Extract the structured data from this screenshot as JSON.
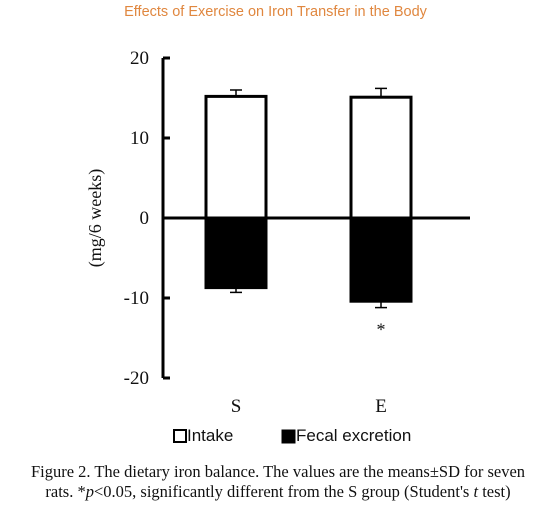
{
  "header": "Effects of Exercise on Iron Transfer in the Body",
  "chart_data": {
    "type": "bar",
    "title": "",
    "xlabel": "",
    "ylabel": "(mg/6 weeks)",
    "ylim": [
      -20,
      20
    ],
    "yticks": [
      "20",
      "10",
      "0",
      "-10",
      "-20"
    ],
    "categories": [
      "S",
      "E"
    ],
    "series": [
      {
        "name": "Intake",
        "values": [
          15.2,
          15.1
        ],
        "errors": [
          0.8,
          1.1
        ],
        "color": "#ffffff"
      },
      {
        "name": "Fecal excretion",
        "values": [
          -8.7,
          -10.4
        ],
        "errors": [
          0.6,
          0.8
        ],
        "color": "#000000"
      }
    ],
    "annotations": [
      {
        "category": "E",
        "series": "Fecal excretion",
        "text": "*"
      }
    ],
    "legend_position": "bottom",
    "grid": false
  },
  "caption": {
    "line1": "Figure 2. The dietary iron balance. The values are the means±SD for seven",
    "line2_prefix": "rats. *",
    "line2_p": "p",
    "line2_mid": "<0.05, significantly different from the S group (Student's ",
    "line2_t": "t",
    "line2_suffix": " test)"
  }
}
